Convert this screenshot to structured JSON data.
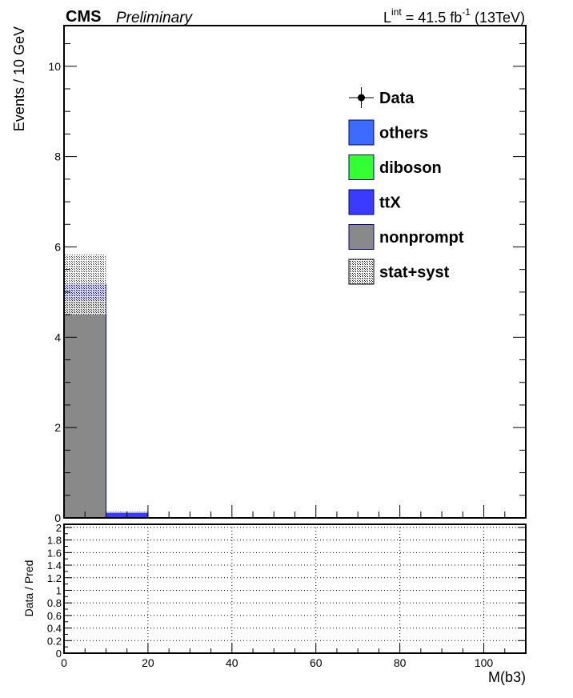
{
  "header": {
    "experiment": "CMS",
    "status": "Preliminary",
    "lumi_prefix": "L",
    "lumi_sup": "int",
    "lumi_value": " = 41.5 fb",
    "lumi_unit_sup": "-1",
    "lumi_suffix": " (13TeV)"
  },
  "chart_data": [
    {
      "type": "bar",
      "stacked": true,
      "title": "",
      "xlabel": "",
      "ylabel": "Events / 10 GeV",
      "xlim": [
        0,
        110
      ],
      "ylim": [
        0,
        10.9
      ],
      "bin_width": 10,
      "bins": [
        0,
        10
      ],
      "x_ticks": [
        0,
        20,
        40,
        60,
        80,
        100
      ],
      "x_tick_labels": [
        "0",
        "20",
        "40",
        "60",
        "80",
        "100"
      ],
      "y_ticks": [
        0,
        2,
        4,
        6,
        8,
        10
      ],
      "y_tick_labels": [
        "0",
        "2",
        "4",
        "6",
        "8",
        "10"
      ],
      "series": [
        {
          "name": "nonprompt",
          "color": "#898989",
          "values": [
            4.85,
            0.0
          ]
        },
        {
          "name": "ttX",
          "color": "#3b3bff",
          "values": [
            0.32,
            0.12
          ]
        },
        {
          "name": "diboson",
          "color": "#33ff33",
          "values": [
            0.0,
            0.0
          ]
        },
        {
          "name": "others",
          "color": "#3c6cff",
          "values": [
            0.0,
            0.0
          ]
        }
      ],
      "uncertainty": {
        "name": "stat+syst",
        "low": [
          4.5,
          0.11
        ],
        "high": [
          5.83,
          0.13
        ]
      },
      "data": {
        "name": "Data",
        "values": []
      },
      "legend": {
        "placement": "top-right",
        "entries": [
          {
            "label": "Data",
            "kind": "marker"
          },
          {
            "label": "others",
            "kind": "box",
            "color": "#3c6cff"
          },
          {
            "label": "diboson",
            "kind": "box",
            "color": "#33ff33"
          },
          {
            "label": "ttX",
            "kind": "box",
            "color": "#3b3bff"
          },
          {
            "label": "nonprompt",
            "kind": "box",
            "color": "#898989"
          },
          {
            "label": "stat+syst",
            "kind": "hatch"
          }
        ]
      }
    },
    {
      "type": "ratio",
      "title": "",
      "xlabel": "M(b3)",
      "ylabel": "Data / Pred",
      "xlim": [
        0,
        110
      ],
      "ylim": [
        0,
        2.05
      ],
      "grid": true,
      "x_ticks": [
        0,
        20,
        40,
        60,
        80,
        100
      ],
      "x_tick_labels": [
        "0",
        "20",
        "40",
        "60",
        "80",
        "100"
      ],
      "y_ticks": [
        0,
        0.2,
        0.4,
        0.6,
        0.8,
        1,
        1.2,
        1.4,
        1.6,
        1.8,
        2
      ],
      "y_tick_labels": [
        "0",
        "0.2",
        "0.4",
        "0.6",
        "0.8",
        "1",
        "1.2",
        "1.4",
        "1.6",
        "1.8",
        "2"
      ],
      "values": []
    }
  ]
}
